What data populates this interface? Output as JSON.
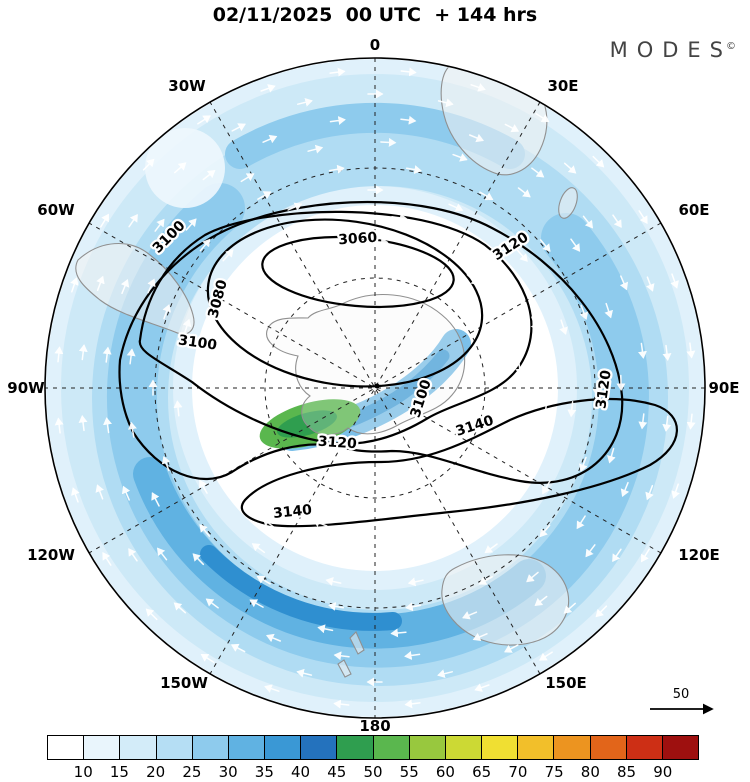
{
  "title": "02/11/2025  00 UTC  + 144 hrs",
  "logo": {
    "text": "MODES",
    "mark": "©"
  },
  "map": {
    "meridian_labels": [
      "0",
      "30E",
      "60E",
      "90E",
      "120E",
      "150E",
      "180",
      "150W",
      "120W",
      "90W",
      "60W",
      "30W"
    ],
    "contour_levels": [
      "3060",
      "3080",
      "3100",
      "3120",
      "3140"
    ],
    "wind_ref_label": "50"
  },
  "colorbar": {
    "labels": [
      "10",
      "15",
      "20",
      "25",
      "30",
      "35",
      "40",
      "45",
      "50",
      "55",
      "60",
      "65",
      "70",
      "75",
      "80",
      "85",
      "90"
    ],
    "colors": [
      "#ffffff",
      "#e9f5fc",
      "#d3ecf9",
      "#b5def4",
      "#8ecbed",
      "#60b2e2",
      "#3a98d5",
      "#2472bd",
      "#2f9e4f",
      "#5ab74e",
      "#98c83e",
      "#ccd934",
      "#f0df32",
      "#f2bf2a",
      "#ec9420",
      "#e2651a",
      "#cd2f15",
      "#9e100f"
    ]
  },
  "chart_data": {
    "type": "heatmap",
    "title": "02/11/2025 00 UTC + 144 hrs",
    "projection": "south-polar circular view, 0 at top, 180 at bottom, meridians every 30 degrees, two dashed latitude circles",
    "meridian_labels": [
      "0",
      "30E",
      "60E",
      "90E",
      "120E",
      "150E",
      "180",
      "150W",
      "120W",
      "90W",
      "60W",
      "30W"
    ],
    "contour_labeled_levels": [
      3060,
      3080,
      3100,
      3120,
      3140
    ],
    "contour_interval": 20,
    "shading_boundaries": [
      10,
      15,
      20,
      25,
      30,
      35,
      40,
      45,
      50,
      55,
      60,
      65,
      70,
      75,
      80,
      85,
      90
    ],
    "shading_palette": [
      "#ffffff",
      "#e9f5fc",
      "#d3ecf9",
      "#b5def4",
      "#8ecbed",
      "#60b2e2",
      "#3a98d5",
      "#2472bd",
      "#2f9e4f",
      "#5ab74e",
      "#98c83e",
      "#ccd934",
      "#f0df32",
      "#f2bf2a",
      "#ec9420",
      "#e2651a",
      "#cd2f15",
      "#9e100f"
    ],
    "vector_reference_value": 50,
    "legend_position": "bottom",
    "annotations": "Blue shaded band (values 10-45) encircles the pole; localized green maximum (45-60) just left/below of center; closed black height contours 3060-3140 around an off-center low; white arrows depict clockwise circulation; reference arrow = 50."
  }
}
